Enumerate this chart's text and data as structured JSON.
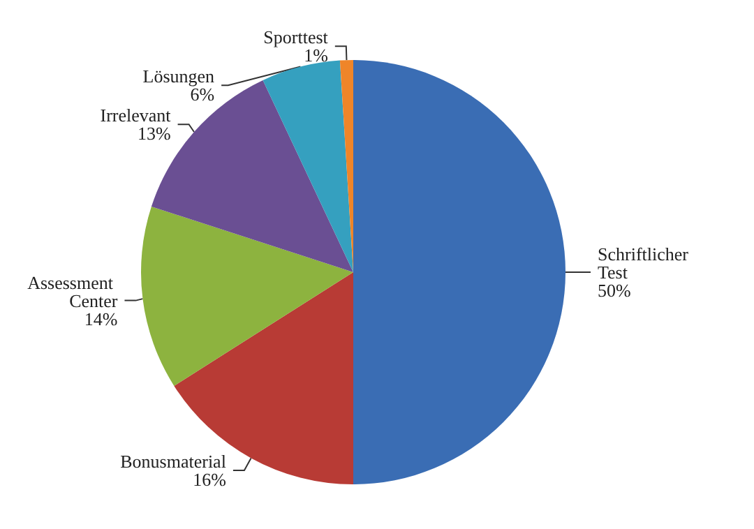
{
  "chart_data": {
    "type": "pie",
    "categories": [
      "Schriftlicher Test",
      "Bonusmaterial",
      "Assessment Center",
      "Irrelevant",
      "Lösungen",
      "Sporttest"
    ],
    "values": [
      50,
      16,
      14,
      13,
      6,
      1
    ],
    "value_labels": [
      "50%",
      "16%",
      "14%",
      "13%",
      "6%",
      "1%"
    ],
    "colors": [
      "#3a6db4",
      "#b83b35",
      "#8db33f",
      "#6a4f93",
      "#35a0bf",
      "#ef8529"
    ]
  }
}
